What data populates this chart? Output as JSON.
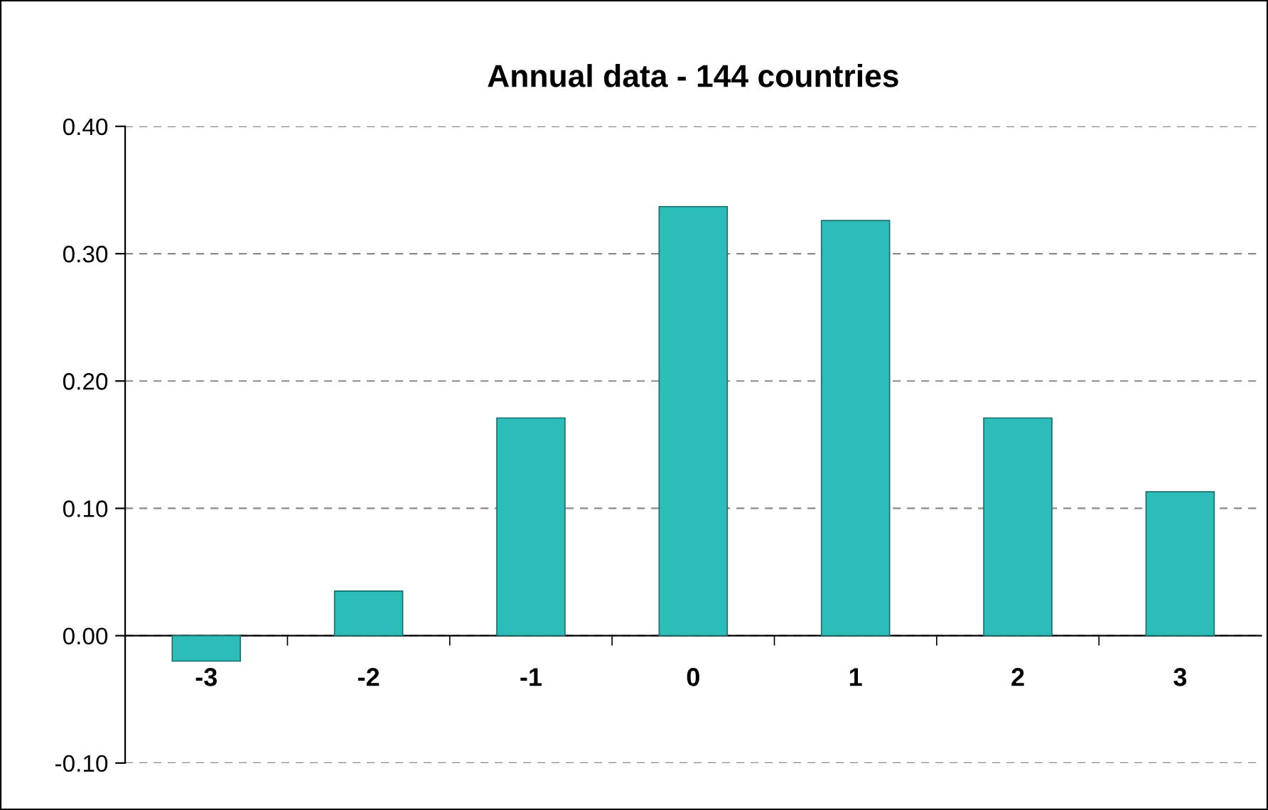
{
  "chart_data": {
    "type": "bar",
    "title": "Annual data - 144 countries",
    "categories": [
      "-3",
      "-2",
      "-1",
      "0",
      "1",
      "2",
      "3"
    ],
    "values": [
      -0.02,
      0.035,
      0.171,
      0.337,
      0.326,
      0.171,
      0.113
    ],
    "color": "#2cbdb9",
    "ylim": [
      -0.1,
      0.4
    ],
    "yticks": [
      {
        "value": -0.1,
        "label": "-0.10"
      },
      {
        "value": 0,
        "label": "0.00"
      },
      {
        "value": 0.1,
        "label": "0.10"
      },
      {
        "value": 0.2,
        "label": "0.20"
      },
      {
        "value": 0.3,
        "label": "0.30"
      },
      {
        "value": 0.4,
        "label": "0.40"
      }
    ],
    "grid": "y"
  }
}
